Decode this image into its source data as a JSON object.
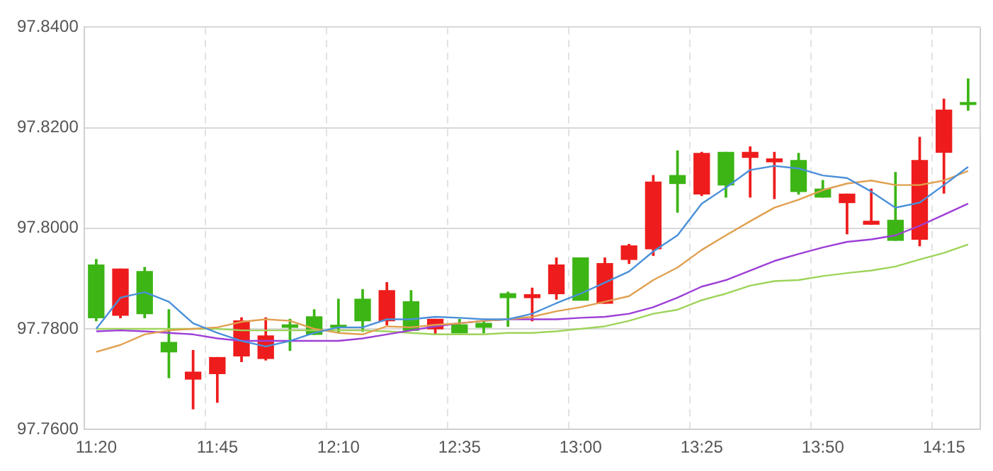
{
  "chart_data": {
    "type": "candlestick",
    "categories": [
      "11:20",
      null,
      null,
      null,
      null,
      "11:45",
      null,
      null,
      null,
      null,
      "12:10",
      null,
      null,
      null,
      null,
      "12:35",
      null,
      null,
      null,
      null,
      "13:00",
      null,
      null,
      null,
      null,
      "13:25",
      null,
      null,
      null,
      null,
      "13:50",
      null,
      null,
      null,
      null,
      "14:15",
      null
    ],
    "ohlc": [
      [
        97.7927,
        97.7938,
        97.7816,
        97.7822
      ],
      [
        97.7827,
        97.7919,
        97.7822,
        97.7919
      ],
      [
        97.7914,
        97.7922,
        97.7822,
        97.783
      ],
      [
        97.7773,
        97.7838,
        97.7703,
        97.7754
      ],
      [
        97.77,
        97.7757,
        97.7641,
        97.7714
      ],
      [
        97.7711,
        97.7743,
        97.7654,
        97.7743
      ],
      [
        97.7746,
        97.7822,
        97.7735,
        97.7816
      ],
      [
        97.7741,
        97.7822,
        97.7738,
        97.7786
      ],
      [
        97.7808,
        97.7819,
        97.7757,
        97.7803
      ],
      [
        97.7824,
        97.7838,
        97.7789,
        97.7789
      ],
      [
        97.7805,
        97.7859,
        97.7792,
        97.7803
      ],
      [
        97.7859,
        97.7878,
        97.7795,
        97.7816
      ],
      [
        97.7816,
        97.7892,
        97.7808,
        97.7876
      ],
      [
        97.7854,
        97.7876,
        97.7797,
        97.7797
      ],
      [
        97.78,
        97.7819,
        97.7789,
        97.7819
      ],
      [
        97.7808,
        97.7819,
        97.7792,
        97.7792
      ],
      [
        97.7811,
        97.7816,
        97.7792,
        97.7803
      ],
      [
        97.787,
        97.7873,
        97.7805,
        97.7862
      ],
      [
        97.7862,
        97.7881,
        97.7816,
        97.7868
      ],
      [
        97.787,
        97.7941,
        97.7859,
        97.7927
      ],
      [
        97.7941,
        97.7941,
        97.7857,
        97.7857
      ],
      [
        97.7851,
        97.7941,
        97.7851,
        97.793
      ],
      [
        97.7938,
        97.7968,
        97.793,
        97.7965
      ],
      [
        97.7959,
        97.8105,
        97.7946,
        97.8092
      ],
      [
        97.8105,
        97.8154,
        97.8032,
        97.8089
      ],
      [
        97.8068,
        97.8151,
        97.8065,
        97.8149
      ],
      [
        97.8151,
        97.8151,
        97.8062,
        97.8086
      ],
      [
        97.8141,
        97.8162,
        97.8062,
        97.8151
      ],
      [
        97.8132,
        97.8151,
        97.8059,
        97.8138
      ],
      [
        97.8135,
        97.8149,
        97.8068,
        97.8073
      ],
      [
        97.8078,
        97.8095,
        97.8062,
        97.8062
      ],
      [
        97.8051,
        97.8068,
        97.7989,
        97.8068
      ],
      [
        97.8008,
        97.8078,
        97.8008,
        97.8014
      ],
      [
        97.8016,
        97.8111,
        97.7976,
        97.7976
      ],
      [
        97.7978,
        97.8181,
        97.7965,
        97.8135
      ],
      [
        97.8151,
        97.8257,
        97.807,
        97.8235
      ],
      [
        97.8249,
        97.8297,
        97.8235,
        97.8246
      ]
    ],
    "colors": [
      "#3cb515",
      "#ee1c1c",
      "#3cb515",
      "#3cb515",
      "#ee1c1c",
      "#ee1c1c",
      "#ee1c1c",
      "#ee1c1c",
      "#3cb515",
      "#3cb515",
      "#3cb515",
      "#3cb515",
      "#ee1c1c",
      "#3cb515",
      "#ee1c1c",
      "#3cb515",
      "#3cb515",
      "#3cb515",
      "#ee1c1c",
      "#ee1c1c",
      "#3cb515",
      "#ee1c1c",
      "#ee1c1c",
      "#ee1c1c",
      "#3cb515",
      "#ee1c1c",
      "#3cb515",
      "#ee1c1c",
      "#ee1c1c",
      "#3cb515",
      "#3cb515",
      "#ee1c1c",
      "#ee1c1c",
      "#3cb515",
      "#ee1c1c",
      "#ee1c1c",
      "#3cb515"
    ],
    "series": [
      {
        "type": "line",
        "color": "#4a90d9",
        "values": [
          97.78,
          97.7862,
          97.7873,
          97.7854,
          97.7811,
          97.7792,
          97.7776,
          97.7765,
          97.7776,
          97.7792,
          97.7803,
          97.7803,
          97.7819,
          97.7819,
          97.7824,
          97.7822,
          97.7819,
          97.7819,
          97.783,
          97.7851,
          97.787,
          97.7892,
          97.7914,
          97.7954,
          97.7986,
          97.8049,
          97.8081,
          97.8116,
          97.8124,
          97.8119,
          97.8105,
          97.81,
          97.8073,
          97.8041,
          97.8051,
          97.8086,
          97.8122
        ]
      },
      {
        "type": "line",
        "color": "#e0a050",
        "values": [
          97.7754,
          97.7768,
          97.7789,
          97.7797,
          97.78,
          97.7803,
          97.7814,
          97.7819,
          97.7816,
          97.78,
          97.7792,
          97.7789,
          97.7805,
          97.7803,
          97.7808,
          97.7811,
          97.7816,
          97.7819,
          97.7824,
          97.7835,
          97.7843,
          97.7854,
          97.7865,
          97.7897,
          97.7922,
          97.7957,
          97.7986,
          97.8014,
          97.8041,
          97.8057,
          97.8076,
          97.8089,
          97.8095,
          97.8086,
          97.8086,
          97.8095,
          97.8114
        ]
      },
      {
        "type": "line",
        "color": "#9d3fd6",
        "values": [
          97.7795,
          97.7797,
          97.7795,
          97.7792,
          97.7789,
          97.7781,
          97.7776,
          97.7776,
          97.7776,
          97.7776,
          97.7776,
          97.7781,
          97.7789,
          97.7797,
          97.7805,
          97.7811,
          97.7816,
          97.7819,
          97.7819,
          97.7819,
          97.7822,
          97.7824,
          97.783,
          97.7843,
          97.7862,
          97.7884,
          97.7897,
          97.7916,
          97.7935,
          97.7949,
          97.7962,
          97.7973,
          97.7978,
          97.7986,
          97.8005,
          97.8027,
          97.8049
        ]
      },
      {
        "type": "line",
        "color": "#9ed45a",
        "values": [
          97.78,
          97.78,
          97.78,
          97.78,
          97.78,
          97.78,
          97.7797,
          97.7797,
          97.7797,
          97.7797,
          97.7797,
          97.7797,
          97.7795,
          97.7792,
          97.7789,
          97.7789,
          97.7789,
          97.7792,
          97.7792,
          97.7795,
          97.78,
          97.7805,
          97.7816,
          97.783,
          97.7838,
          97.7857,
          97.787,
          97.7886,
          97.7895,
          97.7897,
          97.7905,
          97.7911,
          97.7916,
          97.7924,
          97.7938,
          97.7951,
          97.7968
        ]
      }
    ],
    "ylim": [
      97.76,
      97.84
    ],
    "yticks": [
      {
        "value": 97.76,
        "label": "97.7600"
      },
      {
        "value": 97.78,
        "label": "97.7800"
      },
      {
        "value": 97.8,
        "label": "97.8000"
      },
      {
        "value": 97.82,
        "label": "97.8200"
      },
      {
        "value": 97.84,
        "label": "97.8400"
      }
    ],
    "grid": true,
    "marker": "none",
    "line_style": "solid"
  }
}
